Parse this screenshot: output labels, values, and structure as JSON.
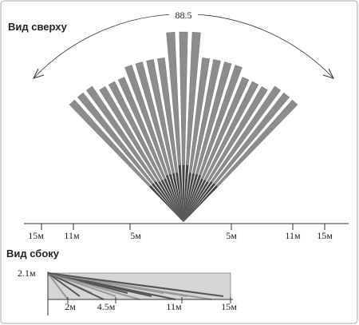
{
  "top_view": {
    "title": "Вид сверху",
    "angle": "88.5",
    "scale_labels": [
      "15м",
      "11м",
      "5м",
      "5м",
      "11м",
      "15м"
    ]
  },
  "side_view": {
    "title": "Вид сбоку",
    "height": "2.1м",
    "distance_labels": [
      "2м",
      "4.5м",
      "11м",
      "15м"
    ]
  }
}
